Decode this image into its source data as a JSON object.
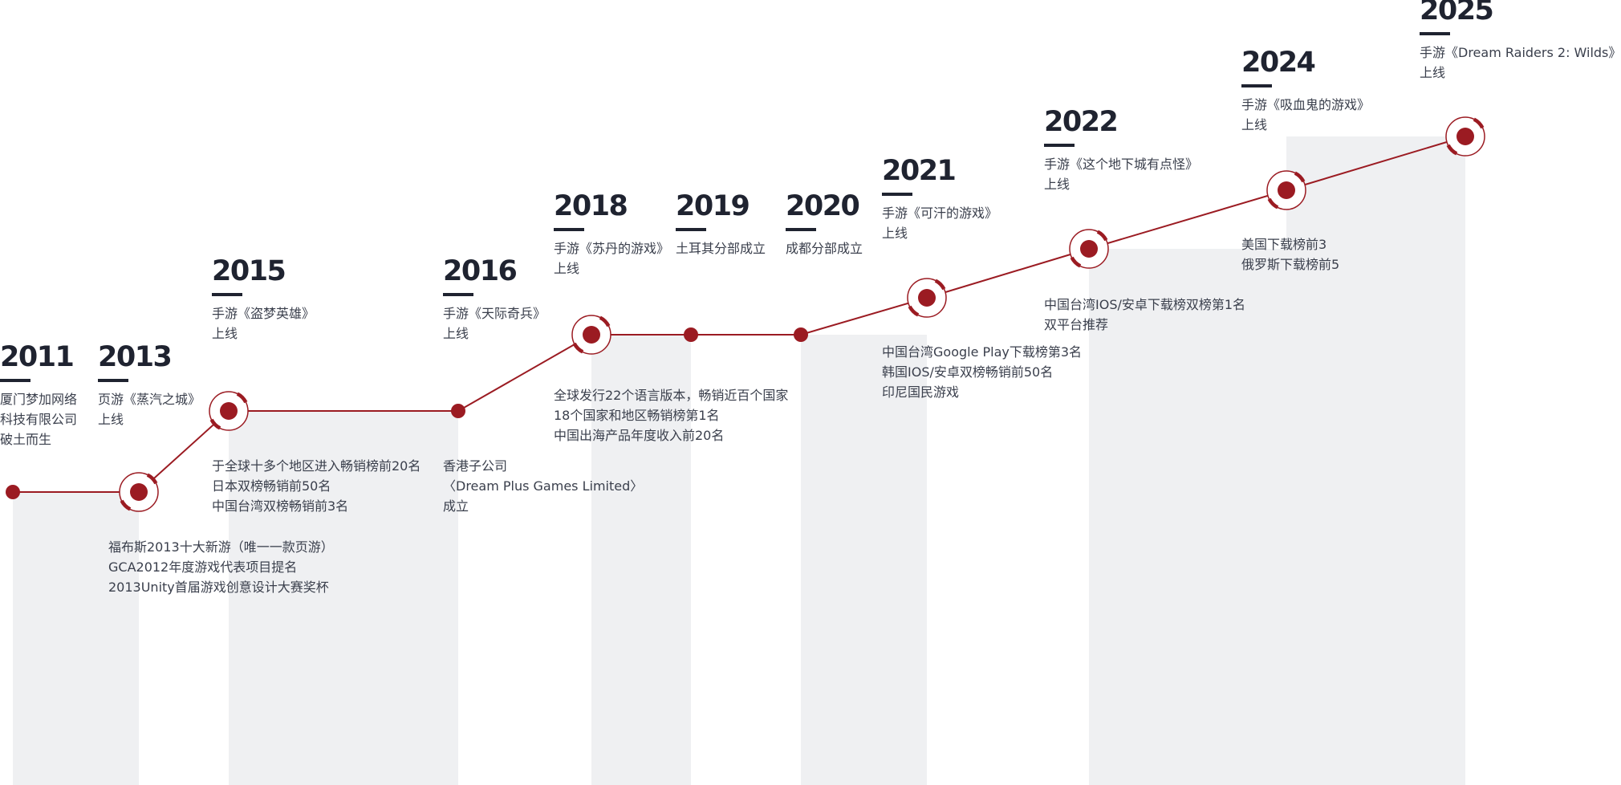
{
  "colors": {
    "accent": "#9b1b22",
    "band": "#eff0f2",
    "year": "#1f2330",
    "text": "#3a3f4c"
  },
  "events": [
    {
      "id": "2011",
      "year": "2011",
      "lines": [
        "厦门梦加网络",
        "科技有限公司",
        "破土而生"
      ],
      "achievements": []
    },
    {
      "id": "2013",
      "year": "2013",
      "lines": [
        "页游《蒸汽之城》",
        "上线"
      ],
      "achievements": [
        "福布斯2013十大新游（唯一一款页游）",
        "GCA2012年度游戏代表项目提名",
        "2013Unity首届游戏创意设计大赛奖杯"
      ]
    },
    {
      "id": "2015",
      "year": "2015",
      "lines": [
        "手游《盗梦英雄》",
        "上线"
      ],
      "achievements": [
        "于全球十多个地区进入畅销榜前20名",
        "日本双榜畅销前50名",
        "中国台湾双榜畅销前3名"
      ]
    },
    {
      "id": "2016",
      "year": "2016",
      "lines": [
        "手游《天际奇兵》",
        "上线"
      ],
      "achievements": [
        "香港子公司",
        "〈Dream Plus  Games Limited〉",
        "成立"
      ]
    },
    {
      "id": "2018",
      "year": "2018",
      "lines": [
        "手游《苏丹的游戏》",
        "上线"
      ],
      "achievements": [
        "全球发行22个语言版本，畅销近百个国家",
        "18个国家和地区畅销榜第1名",
        "中国出海产品年度收入前20名"
      ]
    },
    {
      "id": "2019",
      "year": "2019",
      "lines": [
        "土耳其分部成立"
      ],
      "achievements": []
    },
    {
      "id": "2020",
      "year": "2020",
      "lines": [
        "成都分部成立"
      ],
      "achievements": []
    },
    {
      "id": "2021",
      "year": "2021",
      "lines": [
        "手游《可汗的游戏》",
        "上线"
      ],
      "achievements": [
        "中国台湾Google Play下载榜第3名",
        "韩国IOS/安卓双榜畅销前50名",
        "印尼国民游戏"
      ]
    },
    {
      "id": "2022",
      "year": "2022",
      "lines": [
        "手游《这个地下城有点怪》",
        "上线"
      ],
      "achievements": [
        "中国台湾IOS/安卓下载榜双榜第1名",
        "双平台推荐"
      ]
    },
    {
      "id": "2024",
      "year": "2024",
      "lines": [
        "手游《吸血鬼的游戏》",
        "上线"
      ],
      "achievements": [
        "美国下载榜前3",
        "俄罗斯下载榜前5"
      ]
    },
    {
      "id": "2025",
      "year": "2025",
      "lines": [
        "手游《Dream Raiders 2: Wilds》",
        "上线"
      ],
      "achievements": []
    }
  ]
}
